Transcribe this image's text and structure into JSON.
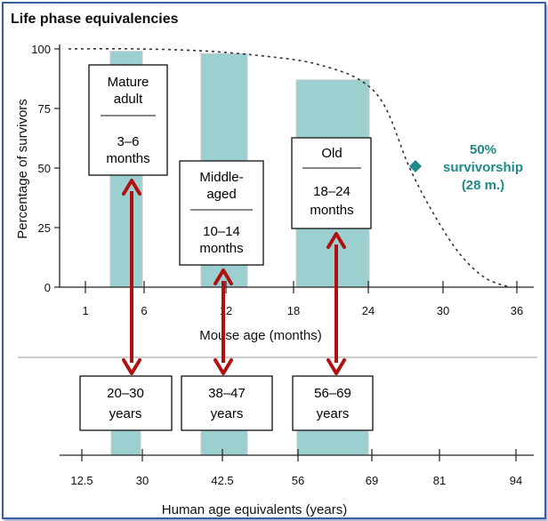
{
  "chart_data": {
    "title": "Life phase equivalencies",
    "type": "bar",
    "top_panel": {
      "ylabel": "Percentage of survivors",
      "xlabel": "Mouse age (months)",
      "yticks": [
        0,
        25,
        50,
        75,
        100
      ],
      "ylim": [
        0,
        100
      ],
      "xticks": [
        "1",
        "6",
        "12",
        "18",
        "24",
        "30",
        "36"
      ],
      "survival_curve": {
        "months": [
          0,
          6,
          12,
          18,
          21,
          24,
          26,
          28,
          30,
          32,
          34,
          36
        ],
        "percent": [
          100,
          100,
          99,
          96,
          93,
          87,
          76,
          50,
          30,
          14,
          4,
          0
        ]
      },
      "bands": [
        {
          "from_month": 3,
          "to_month": 6,
          "top_percent": 99
        },
        {
          "from_month": 10,
          "to_month": 14,
          "top_percent": 98
        },
        {
          "from_month": 18,
          "to_month": 24,
          "top_percent": 87
        }
      ],
      "annotation": {
        "line1": "50%",
        "line2": "survivorship",
        "line3": "(28 m.)",
        "month": 28,
        "percent": 50,
        "color": "#1f8a8a"
      }
    },
    "phases": [
      {
        "name_line1": "Mature",
        "name_line2": "adult",
        "range_line1": "3–6",
        "range_line2": "months"
      },
      {
        "name_line1": "Middle-",
        "name_line2": "aged",
        "range_line1": "10–14",
        "range_line2": "months"
      },
      {
        "name_line1": "Old",
        "name_line2": "",
        "range_line1": "18–24",
        "range_line2": "months"
      }
    ],
    "bottom_panel": {
      "xlabel": "Human age equivalents (years)",
      "xticks": [
        "12.5",
        "30",
        "42.5",
        "56",
        "69",
        "81",
        "94"
      ],
      "equivalents": [
        {
          "line1": "20–30",
          "line2": "years"
        },
        {
          "line1": "38–47",
          "line2": "years"
        },
        {
          "line1": "56–69",
          "line2": "years"
        }
      ]
    },
    "colors": {
      "band": "#9ccfd0",
      "arrow": "#b01010",
      "text": "#111111"
    }
  }
}
